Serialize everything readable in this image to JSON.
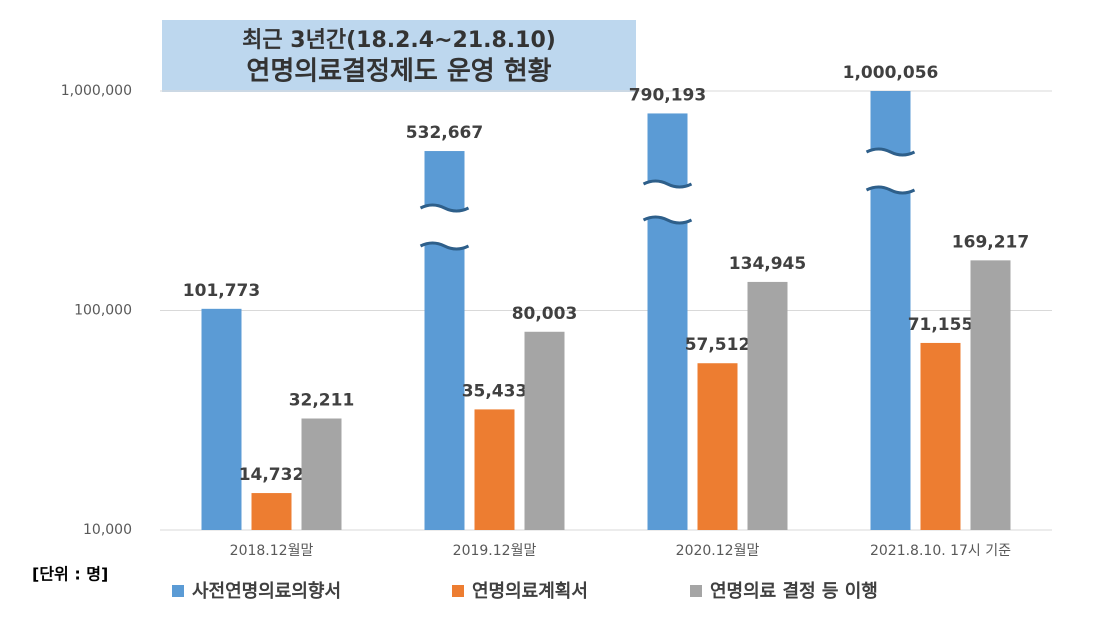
{
  "chart_data": {
    "type": "bar",
    "title": "최근 3년간(18.2.4~21.8.10)",
    "subtitle": "연명의료결정제도 운영 현황",
    "unit_label": "[단위 : 명]",
    "categories": [
      "2018.12월말",
      "2019.12월말",
      "2020.12월말",
      "2021.8.10. 17시 기준"
    ],
    "series": [
      {
        "name": "사전연명의료의향서",
        "color": "#5b9bd5",
        "values": [
          101773,
          532667,
          790193,
          1000056
        ],
        "value_labels": [
          "101,773",
          "532,667",
          "790,193",
          "1,000,056"
        ]
      },
      {
        "name": "연명의료계획서",
        "color": "#ed7d31",
        "values": [
          14732,
          35433,
          57512,
          71155
        ],
        "value_labels": [
          "14,732",
          "35,433",
          "57,512",
          "71,155"
        ]
      },
      {
        "name": "연명의료 결정 등 이행",
        "color": "#a5a5a5",
        "values": [
          32211,
          80003,
          134945,
          169217
        ],
        "value_labels": [
          "32,211",
          "80,003",
          "134,945",
          "169,217"
        ]
      }
    ],
    "ylim": [
      10000,
      1000000
    ],
    "yticks": [
      {
        "value": 10000,
        "label": "10,000"
      },
      {
        "value": 100000,
        "label": "100,000"
      },
      {
        "value": 1000000,
        "label": "1,000,000"
      }
    ],
    "log_scale": true,
    "grid": true
  }
}
